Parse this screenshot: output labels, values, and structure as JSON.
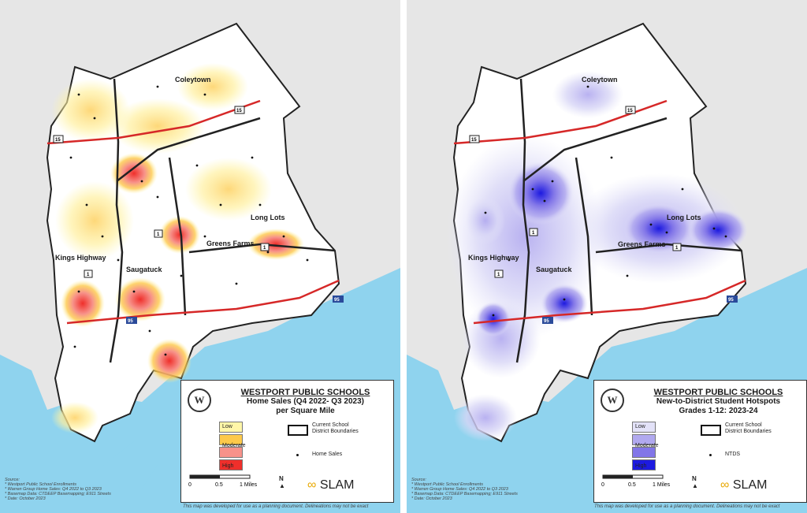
{
  "left_map": {
    "legend": {
      "title": "WESTPORT PUBLIC SCHOOLS",
      "subtitle_1": "Home Sales (Q4 2022- Q3 2023)",
      "subtitle_2": "per Square Mile",
      "classes": [
        {
          "label": "Low",
          "color": "#fff6a8"
        },
        {
          "label": "Moderate",
          "color": "#fdc94a"
        },
        {
          "label": "",
          "color": "#f7928a"
        },
        {
          "label": "High",
          "color": "#ef2f2b"
        }
      ],
      "boundary_label": "Current School District Boundaries",
      "points_label": "Home Sales",
      "scale": {
        "t0": "0",
        "t1": "0.5",
        "t2": "1 Miles"
      },
      "north": "N",
      "logo": "SLAM"
    },
    "source": [
      "Source:",
      "* Westport Public School Enrollments",
      "* Warren Group Home Sales: Q4 2022 to Q3 2023",
      "* Basemap Data: CTDEEP Basemapping; E911 Streets",
      "* Date: October 2023"
    ],
    "disclaimer": "This map was developed for use as a planning document. Delineations may not be exact"
  },
  "right_map": {
    "legend": {
      "title": "WESTPORT PUBLIC SCHOOLS",
      "subtitle_1": "New-to-District Student Hotspots",
      "subtitle_2": "Grades 1-12: 2023-24",
      "classes": [
        {
          "label": "Low",
          "color": "#e3e2f8"
        },
        {
          "label": "Moderate",
          "color": "#b1a9ef"
        },
        {
          "label": "",
          "color": "#8276e8"
        },
        {
          "label": "High",
          "color": "#1d1ae0"
        }
      ],
      "boundary_label": "Current School District Boundaries",
      "points_label": "NTDS",
      "scale": {
        "t0": "0",
        "t1": "0.5",
        "t2": "1 Miles"
      },
      "north": "N",
      "logo": "SLAM"
    },
    "source": [
      "Source:",
      "* Westport Public School Enrollments",
      "* Warren Group Home Sales: Q4 2022 to Q3 2023",
      "* Basemap Data: CTDEEP Basemapping; E911 Streets",
      "* Date: October 2023"
    ],
    "disclaimer": "This map was developed for use as a planning document. Delineations may not be exact"
  },
  "place_labels": [
    "Coleytown",
    "Long Lots",
    "Greens Farms",
    "Kings Highway",
    "Saugatuck"
  ],
  "route_labels": [
    "15",
    "15",
    "1",
    "1",
    "1",
    "95",
    "95"
  ],
  "colors": {
    "water": "#8fd3ee",
    "land": "#ffffff",
    "outside": "#e6e6e6",
    "highway": "#d62828"
  }
}
